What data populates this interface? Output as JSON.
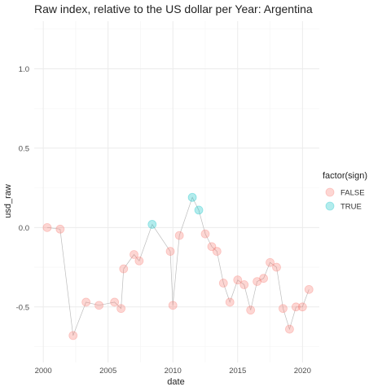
{
  "chart_data": {
    "type": "scatter",
    "title": "Raw index, relative to the US dollar per Year: Argentina",
    "xlabel": "date",
    "ylabel": "usd_raw",
    "xlim": [
      1999.3,
      2021.3
    ],
    "ylim": [
      -0.85,
      1.3
    ],
    "x_ticks": [
      2000,
      2005,
      2010,
      2015,
      2020
    ],
    "y_ticks": [
      -0.5,
      0.0,
      0.5,
      1.0
    ],
    "grid": true,
    "legend": {
      "title": "factor(sign)",
      "position": "right",
      "entries": [
        {
          "label": "FALSE",
          "color": "#f8766d"
        },
        {
          "label": "TRUE",
          "color": "#00bfc4"
        }
      ]
    },
    "line_color": "#bdbdbd",
    "points": [
      {
        "x": 2000.3,
        "y": 0.0,
        "sign": "FALSE"
      },
      {
        "x": 2001.3,
        "y": -0.01,
        "sign": "FALSE"
      },
      {
        "x": 2002.3,
        "y": -0.68,
        "sign": "FALSE"
      },
      {
        "x": 2003.3,
        "y": -0.47,
        "sign": "FALSE"
      },
      {
        "x": 2004.3,
        "y": -0.49,
        "sign": "FALSE"
      },
      {
        "x": 2005.5,
        "y": -0.47,
        "sign": "FALSE"
      },
      {
        "x": 2006.0,
        "y": -0.51,
        "sign": "FALSE"
      },
      {
        "x": 2006.2,
        "y": -0.26,
        "sign": "FALSE"
      },
      {
        "x": 2007.0,
        "y": -0.17,
        "sign": "FALSE"
      },
      {
        "x": 2007.4,
        "y": -0.21,
        "sign": "FALSE"
      },
      {
        "x": 2008.4,
        "y": 0.02,
        "sign": "TRUE"
      },
      {
        "x": 2009.8,
        "y": -0.15,
        "sign": "FALSE"
      },
      {
        "x": 2010.0,
        "y": -0.49,
        "sign": "FALSE"
      },
      {
        "x": 2010.5,
        "y": -0.05,
        "sign": "FALSE"
      },
      {
        "x": 2011.5,
        "y": 0.19,
        "sign": "TRUE"
      },
      {
        "x": 2012.0,
        "y": 0.11,
        "sign": "TRUE"
      },
      {
        "x": 2012.5,
        "y": -0.04,
        "sign": "FALSE"
      },
      {
        "x": 2013.0,
        "y": -0.12,
        "sign": "FALSE"
      },
      {
        "x": 2013.4,
        "y": -0.15,
        "sign": "FALSE"
      },
      {
        "x": 2013.9,
        "y": -0.35,
        "sign": "FALSE"
      },
      {
        "x": 2014.4,
        "y": -0.47,
        "sign": "FALSE"
      },
      {
        "x": 2015.0,
        "y": -0.33,
        "sign": "FALSE"
      },
      {
        "x": 2015.5,
        "y": -0.36,
        "sign": "FALSE"
      },
      {
        "x": 2016.0,
        "y": -0.52,
        "sign": "FALSE"
      },
      {
        "x": 2016.5,
        "y": -0.34,
        "sign": "FALSE"
      },
      {
        "x": 2017.0,
        "y": -0.32,
        "sign": "FALSE"
      },
      {
        "x": 2017.5,
        "y": -0.22,
        "sign": "FALSE"
      },
      {
        "x": 2018.0,
        "y": -0.25,
        "sign": "FALSE"
      },
      {
        "x": 2018.5,
        "y": -0.51,
        "sign": "FALSE"
      },
      {
        "x": 2019.0,
        "y": -0.64,
        "sign": "FALSE"
      },
      {
        "x": 2019.5,
        "y": -0.5,
        "sign": "FALSE"
      },
      {
        "x": 2020.0,
        "y": -0.5,
        "sign": "FALSE"
      },
      {
        "x": 2020.5,
        "y": -0.39,
        "sign": "FALSE"
      }
    ]
  }
}
